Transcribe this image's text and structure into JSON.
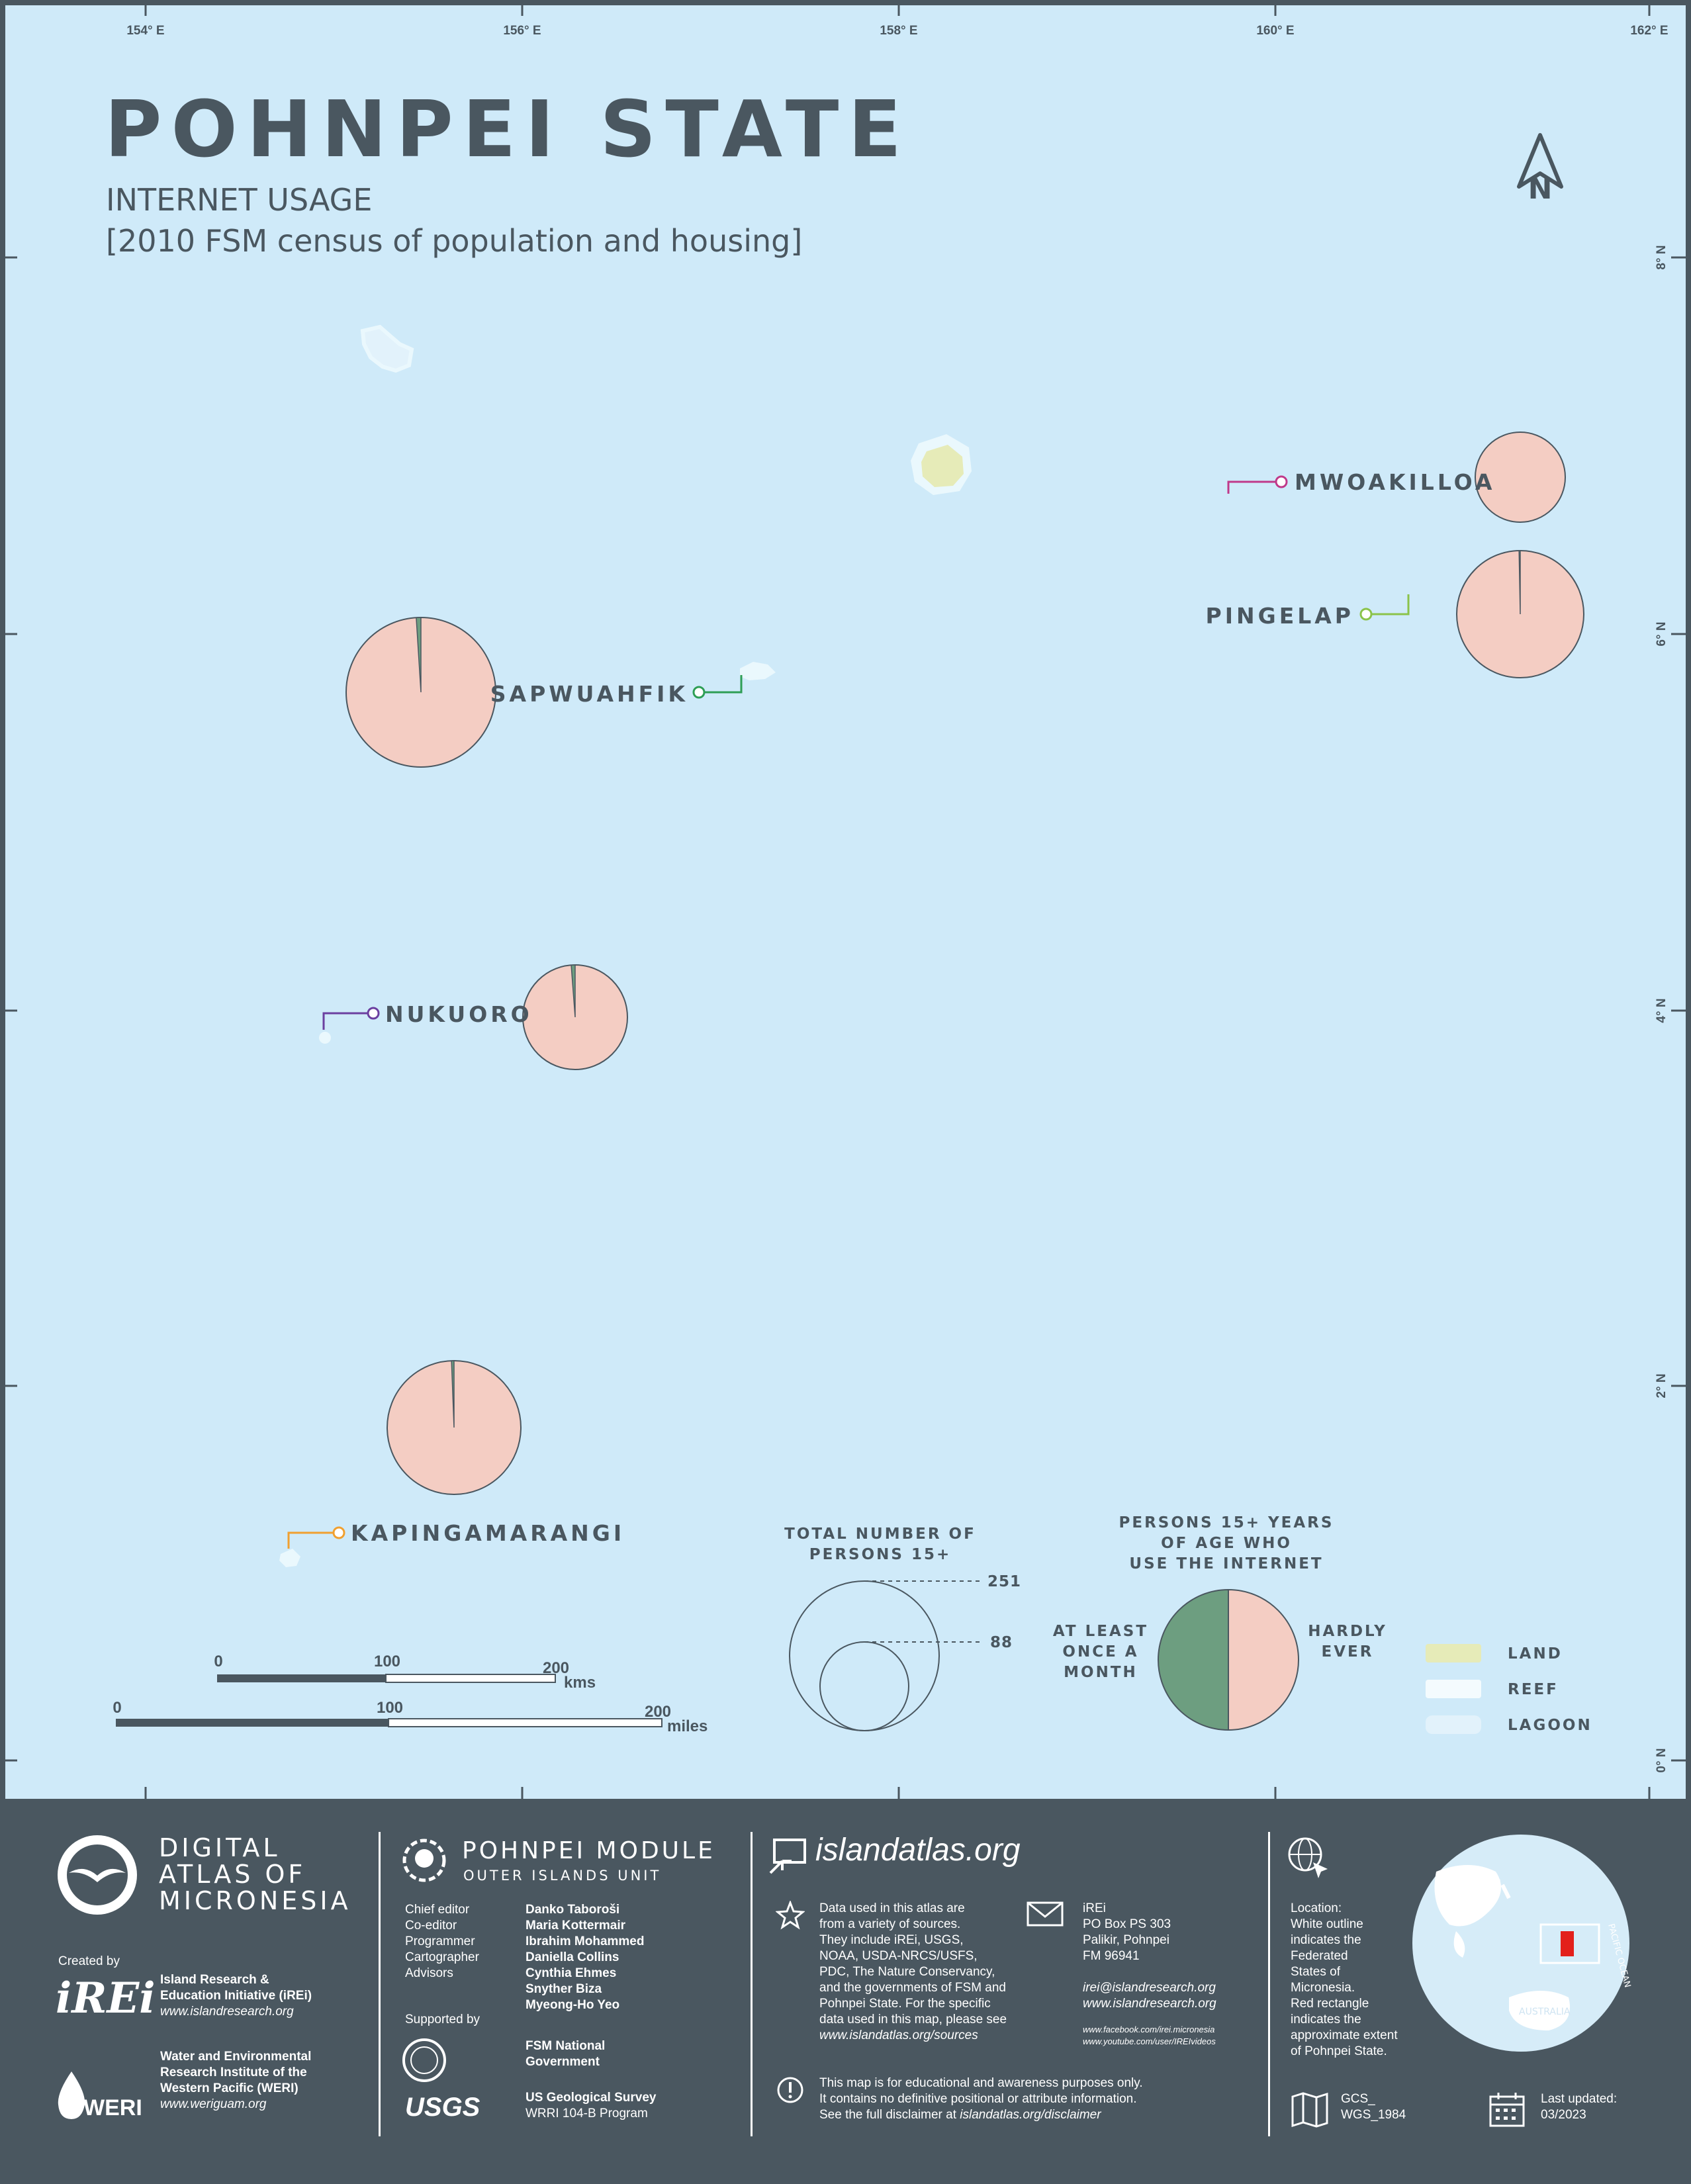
{
  "title": "POHNPEI STATE",
  "subtitle": "INTERNET USAGE",
  "source": "[2010 FSM census of population and housing]",
  "north_label": "N",
  "graticule": {
    "lon_labels": [
      "154° E",
      "156° E",
      "158° E",
      "160° E",
      "162° E"
    ],
    "lat_labels": [
      "8° N",
      "6° N",
      "4° N",
      "2° N",
      "0° N"
    ]
  },
  "colors": {
    "sea": "#cfeaf9",
    "land": "#e6ebb8",
    "reef": "#eaf8fd",
    "lagoon": "#e2f2fb",
    "at_least_once_a_month": "#6d9e80",
    "hardly_ever": "#f4cdc3",
    "text": "#4a5760"
  },
  "chart_data": {
    "type": "pie",
    "title": "PERSONS 15+ YEARS OF AGE WHO USE THE INTERNET",
    "series": [
      {
        "name": "AT LEAST ONCE A MONTH"
      },
      {
        "name": "HARDLY EVER"
      }
    ],
    "pies": [
      {
        "label": "MWOAKILLOA",
        "at_least_once_a_month": 0.0,
        "hardly_ever": 1.0,
        "total_relative": 0.58,
        "leader_color": "#c0398a"
      },
      {
        "label": "PINGELAP",
        "at_least_once_a_month": 0.003,
        "hardly_ever": 0.997,
        "total_relative": 0.86,
        "leader_color": "#8bc34a"
      },
      {
        "label": "SAPWUAHFIK",
        "at_least_once_a_month": 0.01,
        "hardly_ever": 0.99,
        "total_relative": 1.0,
        "leader_color": "#2e9e55"
      },
      {
        "label": "NUKUORO",
        "at_least_once_a_month": 0.012,
        "hardly_ever": 0.988,
        "total_relative": 0.7,
        "leader_color": "#6b3fa0"
      },
      {
        "label": "KAPINGAMARANGI",
        "at_least_once_a_month": 0.006,
        "hardly_ever": 0.994,
        "total_relative": 0.9,
        "leader_color": "#f0a030"
      }
    ]
  },
  "legend": {
    "size_title": "TOTAL NUMBER OF PERSONS 15+",
    "size_values": [
      251,
      88
    ],
    "pie_title": "PERSONS 15+ YEARS OF AGE WHO USE THE INTERNET",
    "left_label": "AT LEAST ONCE A MONTH",
    "right_label": "HARDLY EVER",
    "swatches": [
      "LAND",
      "REEF",
      "LAGOON"
    ]
  },
  "scalebars": {
    "kms": {
      "ticks": [
        "0",
        "100",
        "200"
      ],
      "unit": "kms"
    },
    "miles": {
      "ticks": [
        "0",
        "100",
        "200"
      ],
      "unit": "miles"
    }
  },
  "footer": {
    "atlas_name": [
      "DIGITAL",
      "ATLAS OF",
      "MICRONESIA"
    ],
    "created_by": "Created by",
    "irei_logo": "iREi",
    "irei_name": [
      "Island Research &",
      "Education Initiative (iREi)"
    ],
    "irei_url": "www.islandresearch.org",
    "weri_logo": "WERI",
    "weri_name": [
      "Water and Environmental",
      "Research Institute of the",
      "Western Pacific (WERI)"
    ],
    "weri_url": "www.weriguam.org",
    "module_title": "POHNPEI MODULE",
    "module_subtitle": "OUTER ISLANDS UNIT",
    "roles": [
      "Chief editor",
      "Co-editor",
      "Programmer",
      "Cartographer",
      "Advisors"
    ],
    "people": [
      "Danko Taboroši",
      "Maria Kottermair",
      "Ibrahim Mohammed",
      "Daniella Collins",
      "Cynthia Ehmes",
      "Snyther Biza",
      "Myeong-Ho Yeo"
    ],
    "supported_by": "Supported by",
    "supporter_1": [
      "FSM National",
      "Government"
    ],
    "usgs_logo": "USGS",
    "supporter_2": "US Geological Survey",
    "supporter_2_program": "WRRI 104-B Program",
    "site": "islandatlas.org",
    "data_note": [
      "Data used in this atlas are",
      "from a variety of sources.",
      "They include iREi, USGS,",
      "NOAA, USDA-NRCS/USFS,",
      "PDC, The Nature Conservancy,",
      "and the governments of FSM and",
      "Pohnpei State. For the specific",
      "data used in this map, please see"
    ],
    "data_note_url": "www.islandatlas.org/sources",
    "contact": [
      "iREi",
      "PO Box PS 303",
      "Palikir, Pohnpei",
      "FM 96941"
    ],
    "contact_email": "irei@islandresearch.org",
    "contact_web": "www.islandresearch.org",
    "contact_fb": "www.facebook.com/irei.micronesia",
    "contact_yt": "www.youtube.com/user/IREIvideos",
    "disclaimer": [
      "This map is for educational and awareness purposes only.",
      "It contains no definitive positional or attribute information."
    ],
    "disclaimer_prefix": "See the full disclaimer at ",
    "disclaimer_url": "islandatlas.org/disclaimer",
    "location_note": [
      "Location:",
      "White outline",
      "indicates the",
      "Federated",
      "States of",
      "Micronesia.",
      "Red rectangle",
      "indicates the",
      "approximate extent",
      "of Pohnpei State."
    ],
    "projection": [
      "GCS_",
      "WGS_1984"
    ],
    "updated_label": "Last updated:",
    "updated_value": "03/2023",
    "globe_labels": [
      "PACIFIC OCEAN",
      "AUSTRALIA"
    ]
  }
}
